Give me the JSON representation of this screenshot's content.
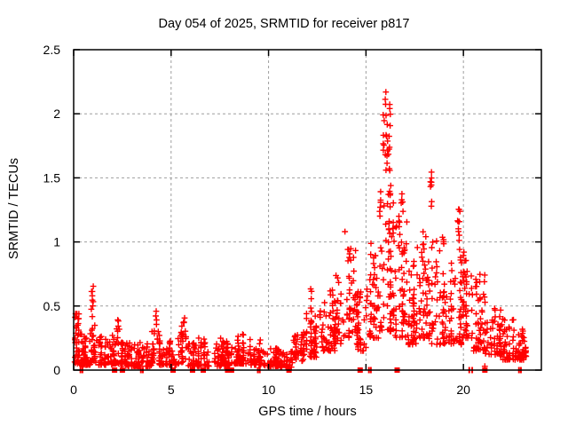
{
  "chart_data": {
    "type": "scatter",
    "title": "Day 054 of 2025, SRMTID for receiver p817",
    "xlabel": "GPS time / hours",
    "ylabel": "SRMTID / TECUs",
    "xlim": [
      0,
      24
    ],
    "ylim": [
      0,
      2.5
    ],
    "xticks": [
      0,
      5,
      10,
      15,
      20
    ],
    "yticks": [
      0,
      0.5,
      1,
      1.5,
      2,
      2.5
    ],
    "xtick_labels": [
      "0",
      "5",
      "10",
      "15",
      "20"
    ],
    "ytick_labels": [
      "0",
      "0.5",
      "1",
      "1.5",
      "2",
      "2.5"
    ],
    "grid": true,
    "grid_color": "#9e9e9e",
    "border_color": "#000000",
    "marker_color": "#ff0000",
    "seed": 20250054,
    "series": [
      {
        "name": "srmtid",
        "marker": "plus",
        "bins": [
          [
            0.0,
            0.3,
            35,
            0.05,
            0.45,
            2.0
          ],
          [
            0.3,
            0.9,
            48,
            0.04,
            0.3,
            2.2
          ],
          [
            0.93,
            1.02,
            8,
            0.45,
            0.73,
            1.0
          ],
          [
            0.9,
            1.2,
            28,
            0.06,
            0.45,
            2.0
          ],
          [
            1.2,
            2.0,
            55,
            0.04,
            0.28,
            2.2
          ],
          [
            2.0,
            2.45,
            32,
            0.05,
            0.35,
            2.0
          ],
          [
            2.2,
            2.3,
            4,
            0.3,
            0.47,
            1.0
          ],
          [
            2.45,
            3.2,
            55,
            0.03,
            0.22,
            2.2
          ],
          [
            3.2,
            4.0,
            55,
            0.03,
            0.22,
            2.2
          ],
          [
            4.0,
            4.4,
            28,
            0.05,
            0.35,
            1.8
          ],
          [
            4.15,
            4.3,
            4,
            0.35,
            0.46,
            1.0
          ],
          [
            4.4,
            5.45,
            65,
            0.04,
            0.25,
            2.2
          ],
          [
            5.5,
            5.85,
            24,
            0.06,
            0.35,
            1.6
          ],
          [
            5.6,
            5.75,
            4,
            0.35,
            0.43,
            1.0
          ],
          [
            5.85,
            7.0,
            80,
            0.03,
            0.25,
            2.4
          ],
          [
            7.0,
            8.0,
            70,
            0.03,
            0.25,
            2.2
          ],
          [
            8.0,
            9.0,
            65,
            0.05,
            0.28,
            2.0
          ],
          [
            9.0,
            9.6,
            42,
            0.04,
            0.25,
            2.2
          ],
          [
            9.6,
            10.6,
            65,
            0.03,
            0.18,
            2.0
          ],
          [
            10.6,
            11.2,
            38,
            0.02,
            0.15,
            1.8
          ],
          [
            11.2,
            11.9,
            48,
            0.07,
            0.3,
            1.8
          ],
          [
            11.9,
            12.6,
            48,
            0.1,
            0.45,
            1.8
          ],
          [
            12.15,
            12.3,
            5,
            0.45,
            0.65,
            1.0
          ],
          [
            12.6,
            13.4,
            52,
            0.15,
            0.55,
            1.8
          ],
          [
            13.1,
            13.35,
            6,
            0.45,
            0.65,
            1.0
          ],
          [
            13.4,
            13.9,
            38,
            0.2,
            0.75,
            1.6
          ],
          [
            13.9,
            14.45,
            42,
            0.25,
            1.05,
            1.5
          ],
          [
            14.45,
            15.05,
            42,
            0.15,
            0.65,
            1.8
          ],
          [
            15.05,
            15.65,
            45,
            0.25,
            1.0,
            1.5
          ],
          [
            15.65,
            16.45,
            80,
            0.3,
            1.5,
            1.4
          ],
          [
            15.85,
            16.25,
            28,
            1.55,
            2.18,
            1.0
          ],
          [
            16.45,
            17.1,
            55,
            0.25,
            1.3,
            1.7
          ],
          [
            16.8,
            16.95,
            5,
            1.15,
            1.45,
            1.0
          ],
          [
            17.1,
            17.6,
            50,
            0.2,
            0.85,
            1.8
          ],
          [
            17.6,
            18.15,
            46,
            0.25,
            1.1,
            1.6
          ],
          [
            18.2,
            18.4,
            8,
            1.25,
            1.58,
            1.0
          ],
          [
            18.15,
            19.3,
            75,
            0.2,
            1.05,
            1.7
          ],
          [
            19.3,
            19.95,
            50,
            0.2,
            0.95,
            1.7
          ],
          [
            19.65,
            19.85,
            10,
            1.0,
            1.28,
            1.0
          ],
          [
            19.95,
            20.5,
            46,
            0.25,
            0.95,
            1.7
          ],
          [
            20.5,
            21.1,
            50,
            0.15,
            0.75,
            1.8
          ],
          [
            21.1,
            21.9,
            55,
            0.12,
            0.5,
            1.9
          ],
          [
            21.9,
            22.6,
            50,
            0.08,
            0.4,
            2.0
          ],
          [
            22.6,
            23.3,
            50,
            0.08,
            0.32,
            2.0
          ]
        ],
        "points": [
          [
            0.1,
            0.44
          ],
          [
            13.92,
            1.08
          ],
          [
            16.02,
            2.17
          ],
          [
            21.1,
            0.03
          ]
        ]
      },
      {
        "name": "flags-squares",
        "marker": "square",
        "y": 0,
        "x": [
          2.1,
          2.5,
          5.1,
          6.1,
          6.65,
          7.9,
          8.1,
          11.05,
          14.7,
          16.6,
          21.1
        ]
      },
      {
        "name": "flags-ticks",
        "marker": "vbar",
        "y": 0,
        "x": [
          0.35,
          0.45,
          3.45,
          3.55,
          9.45,
          9.55,
          15.15,
          15.25,
          20.3,
          20.45,
          22.85,
          22.95
        ]
      }
    ]
  }
}
